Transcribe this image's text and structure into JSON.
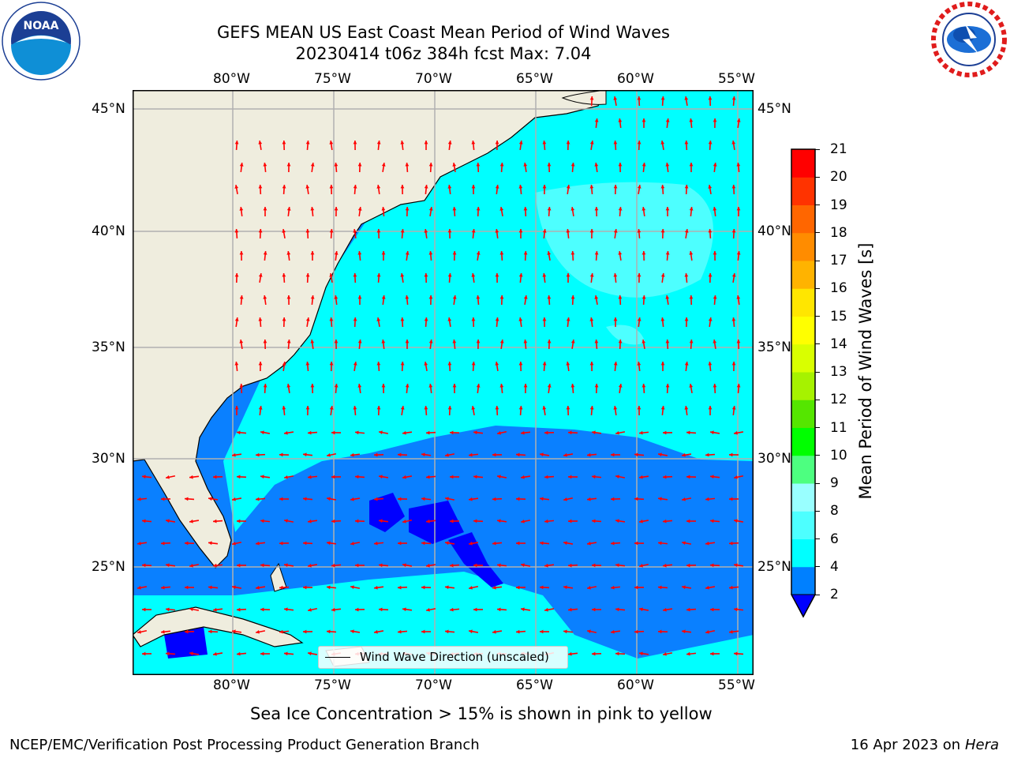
{
  "title_line1": "GEFS MEAN US East Coast Mean Period of Wind Waves",
  "title_line2": "20230414 t06z 384h fcst   Max: 7.04",
  "logos": {
    "left": "NOAA",
    "right": "NATIONAL WEATHER SERVICE"
  },
  "map": {
    "lon_ticks": [
      "80°W",
      "75°W",
      "70°W",
      "65°W",
      "60°W",
      "55°W"
    ],
    "lat_ticks": [
      "45°N",
      "40°N",
      "35°N",
      "30°N",
      "25°N"
    ],
    "legend_label": "Wind Wave Direction (unscaled)",
    "colors": {
      "land": "#efedde",
      "ocean_2_4": "#0a80ff",
      "ocean_4_6": "#00ffff",
      "ocean_6_8": "#4dffff",
      "below_2": "#0000ff",
      "arrow": "#ff0000",
      "grid": "#b0b0b0"
    }
  },
  "colorbar": {
    "label": "Mean Period of Wind Waves [s]",
    "ticks": [
      "2",
      "4",
      "6",
      "8",
      "9",
      "10",
      "11",
      "12",
      "13",
      "14",
      "15",
      "16",
      "17",
      "18",
      "19",
      "20",
      "21"
    ],
    "colors": [
      "#0080ff",
      "#00ffff",
      "#4dffff",
      "#99ffff",
      "#4dff80",
      "#00ff00",
      "#55e600",
      "#a6f200",
      "#d9ff00",
      "#ffff00",
      "#ffe600",
      "#ffb300",
      "#ff8c00",
      "#ff6600",
      "#ff3300",
      "#ff0000"
    ],
    "under_color": "#0000ff"
  },
  "note": "Sea Ice Concentration > 15% is shown in pink to yellow",
  "footer_left": "NCEP/EMC/Verification Post Processing Product Generation Branch",
  "footer_right_date": "16 Apr 2023 on",
  "footer_right_host": "Hera"
}
